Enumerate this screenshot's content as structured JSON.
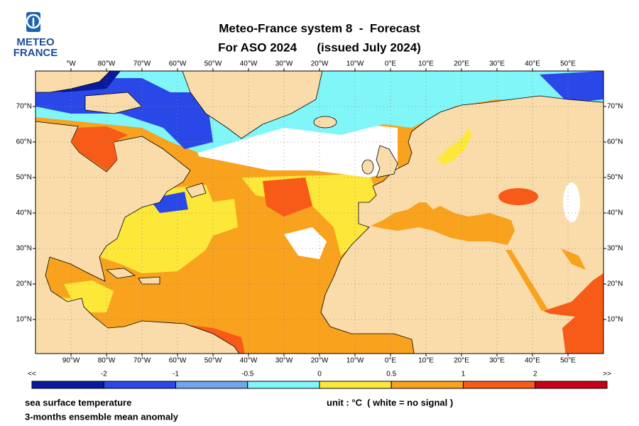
{
  "header": {
    "logo": [
      "METEO",
      "FRANCE"
    ],
    "title": "Meteo-France system 8  -  Forecast",
    "subtitle": "For ASO 2024      (issued July 2024)"
  },
  "map": {
    "top_lon_labels": [
      "°W",
      "80°W",
      "70°W",
      "60°W",
      "50°W",
      "40°W",
      "30°W",
      "20°W",
      "10°W",
      "0°E",
      "10°E",
      "20°E",
      "30°E",
      "40°E",
      "50°E"
    ],
    "bottom_lon_labels": [
      "90°W",
      "80°W",
      "70°W",
      "60°W",
      "50°W",
      "40°W",
      "30°W",
      "20°W",
      "10°W",
      "0°E",
      "10°E",
      "20°E",
      "30°E",
      "40°E",
      "50°E"
    ],
    "left_lat_labels": [
      "70°N",
      "60°N",
      "50°N",
      "40°N",
      "30°N",
      "20°N",
      "10°N"
    ],
    "right_lat_labels": [
      "70°N",
      "60°N",
      "50°N",
      "40°N",
      "30°N",
      "20°N",
      "10°N"
    ]
  },
  "legend": {
    "labels": [
      "<<",
      "-2",
      "-1",
      "-0.5",
      "0",
      "0.5",
      "1",
      "2",
      ">>"
    ],
    "colors": [
      "#0a1a9c",
      "#2a48e8",
      "#6fa6ee",
      "#80f6f8",
      "#fde83a",
      "#f8a21e",
      "#f85a18",
      "#c8001a"
    ]
  },
  "footer": {
    "variable": "sea surface temperature",
    "description": "3-months ensemble mean anomaly",
    "unit": "unit : °C  ( white = no signal )"
  }
}
